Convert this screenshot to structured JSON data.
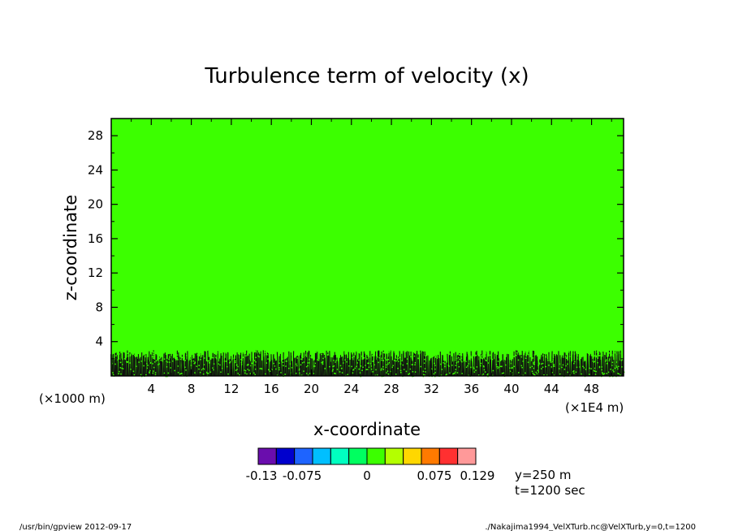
{
  "chart_data": {
    "type": "heatmap",
    "title": "Turbulence term of velocity (x)",
    "xlabel": "x-coordinate",
    "ylabel": "z-coordinate",
    "x_unit_left": "(×1000 m)",
    "x_unit_right": "(×1E4 m)",
    "xlim": [
      0,
      51.2
    ],
    "ylim": [
      0,
      30
    ],
    "x_ticks": [
      4,
      8,
      12,
      16,
      20,
      24,
      28,
      32,
      36,
      40,
      44,
      48
    ],
    "x_tick_labels": [
      "4",
      "8",
      "12",
      "16",
      "20",
      "24",
      "28",
      "32",
      "36",
      "40",
      "44",
      "48"
    ],
    "y_ticks": [
      4,
      8,
      12,
      16,
      20,
      24,
      28
    ],
    "y_tick_labels": [
      "4",
      "8",
      "12",
      "16",
      "20",
      "24",
      "28"
    ],
    "field_value_above_boundary_layer": 0,
    "turbulent_layer_top_z": 3,
    "colorbar": {
      "colors": [
        "#6a0dad",
        "#0000cd",
        "#1e64ff",
        "#00bfff",
        "#00ffc0",
        "#00ff60",
        "#3cff00",
        "#b4ff00",
        "#ffd700",
        "#ff7a00",
        "#ff3030",
        "#ff9999"
      ],
      "tick_labels": [
        "-0.13",
        "-0.075",
        "0",
        "0.075",
        "0.129"
      ]
    },
    "annotations": [
      "y=250 m",
      "t=1200 sec"
    ]
  },
  "footer": {
    "left": "/usr/bin/gpview   2012-09-17",
    "right": "./Nakajima1994_VelXTurb.nc@VelXTurb,y=0,t=1200"
  }
}
